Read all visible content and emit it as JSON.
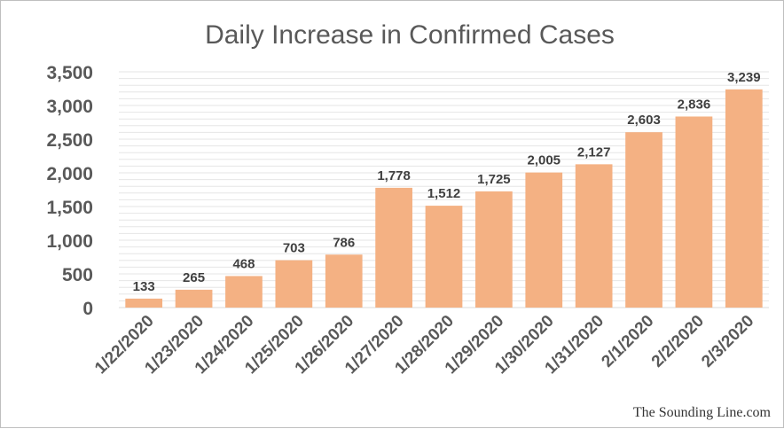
{
  "chart_data": {
    "type": "bar",
    "title": "Daily Increase in Confirmed Cases",
    "xlabel": "",
    "ylabel": "",
    "categories": [
      "1/22/2020",
      "1/23/2020",
      "1/24/2020",
      "1/25/2020",
      "1/26/2020",
      "1/27/2020",
      "1/28/2020",
      "1/29/2020",
      "1/30/2020",
      "1/31/2020",
      "2/1/2020",
      "2/2/2020",
      "2/3/2020"
    ],
    "values": [
      133,
      265,
      468,
      703,
      786,
      1778,
      1512,
      1725,
      2005,
      2127,
      2603,
      2836,
      3239
    ],
    "data_labels": [
      "133",
      "265",
      "468",
      "703",
      "786",
      "1,778",
      "1,512",
      "1,725",
      "2,005",
      "2,127",
      "2,603",
      "2,836",
      "3,239"
    ],
    "ylim": [
      0,
      3500
    ],
    "yticks": [
      0,
      500,
      1000,
      1500,
      2000,
      2500,
      3000,
      3500
    ],
    "ytick_labels": [
      "0",
      "500",
      "1,000",
      "1,500",
      "2,000",
      "2,500",
      "3,000",
      "3,500"
    ],
    "bar_color": "#f4b183",
    "grid": true,
    "grid_color": "#e6e6e6",
    "legend": "none"
  },
  "watermark": "The Sounding Line.com"
}
